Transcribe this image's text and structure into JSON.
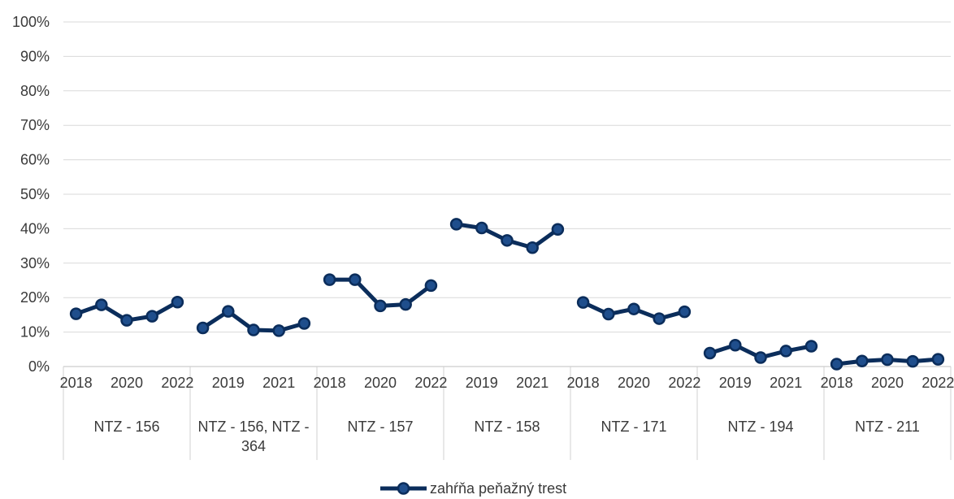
{
  "chart_data": {
    "type": "line",
    "y_ticks": [
      "0%",
      "10%",
      "20%",
      "30%",
      "40%",
      "50%",
      "60%",
      "70%",
      "80%",
      "90%",
      "100%"
    ],
    "ylim": [
      0,
      100
    ],
    "grid": true,
    "legend_position": "bottom",
    "groups": [
      {
        "label": "NTZ - 156",
        "x": [
          "2018",
          "2019",
          "2020",
          "2021",
          "2022"
        ],
        "x_labels_shown": [
          "2018",
          "",
          "2020",
          "",
          "2022"
        ],
        "values": [
          15.3,
          17.9,
          13.4,
          14.6,
          18.7
        ]
      },
      {
        "label": "NTZ - 156, NTZ - 364",
        "x": [
          "2018",
          "2019",
          "2020",
          "2021",
          "2022"
        ],
        "x_labels_shown": [
          "",
          "2019",
          "",
          "2021",
          ""
        ],
        "values": [
          11.2,
          16.0,
          10.6,
          10.4,
          12.5
        ]
      },
      {
        "label": "NTZ - 157",
        "x": [
          "2018",
          "2019",
          "2020",
          "2021",
          "2022"
        ],
        "x_labels_shown": [
          "2018",
          "",
          "2020",
          "",
          "2022"
        ],
        "values": [
          25.2,
          25.2,
          17.6,
          18.0,
          23.5
        ]
      },
      {
        "label": "NTZ - 158",
        "x": [
          "2018",
          "2019",
          "2020",
          "2021",
          "2022"
        ],
        "x_labels_shown": [
          "",
          "2019",
          "",
          "2021",
          ""
        ],
        "values": [
          41.3,
          40.2,
          36.6,
          34.5,
          39.8
        ]
      },
      {
        "label": "NTZ - 171",
        "x": [
          "2018",
          "2019",
          "2020",
          "2021",
          "2022"
        ],
        "x_labels_shown": [
          "2018",
          "",
          "2020",
          "",
          "2022"
        ],
        "values": [
          18.6,
          15.2,
          16.7,
          13.9,
          15.9
        ]
      },
      {
        "label": "NTZ - 194",
        "x": [
          "2018",
          "2019",
          "2020",
          "2021",
          "2022"
        ],
        "x_labels_shown": [
          "",
          "2019",
          "",
          "2021",
          ""
        ],
        "values": [
          3.9,
          6.2,
          2.6,
          4.5,
          5.9
        ]
      },
      {
        "label": "NTZ - 211",
        "x": [
          "2018",
          "2019",
          "2020",
          "2021",
          "2022"
        ],
        "x_labels_shown": [
          "2018",
          "",
          "2020",
          "",
          "2022"
        ],
        "values": [
          0.7,
          1.6,
          2.0,
          1.5,
          2.1
        ]
      }
    ],
    "series": [
      {
        "name": "zahŕňa peňažný trest",
        "color": "#0b2d5b",
        "marker_fill": "#1f4e8c"
      }
    ]
  }
}
